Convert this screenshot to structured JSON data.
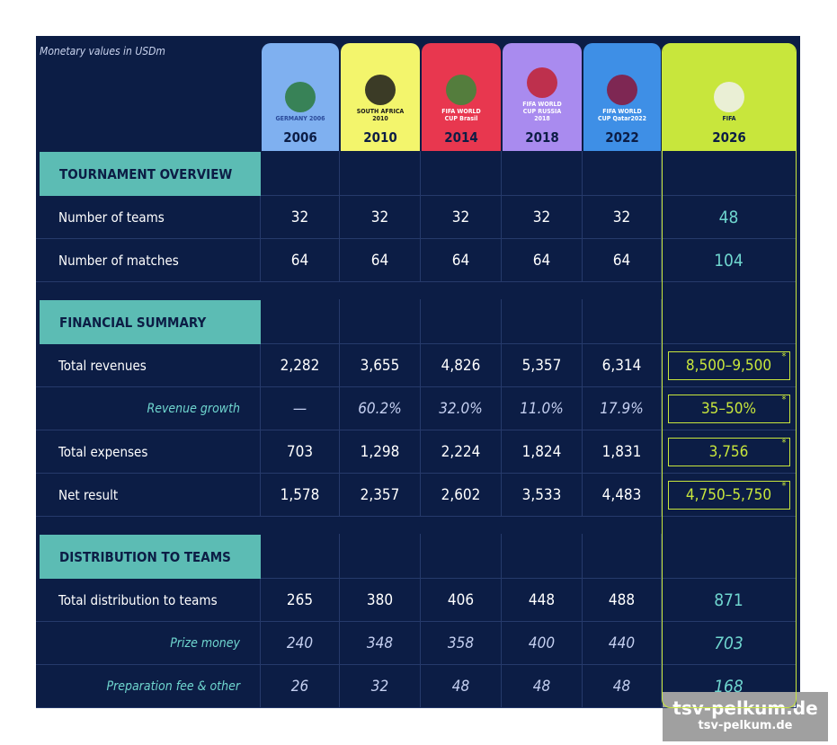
{
  "note": "Monetary values in USDm",
  "columns": [
    {
      "year": "2006",
      "logo": "GERMANY 2006"
    },
    {
      "year": "2010",
      "logo": "SOUTH AFRICA 2010"
    },
    {
      "year": "2014",
      "logo": "FIFA WORLD CUP Brasil"
    },
    {
      "year": "2018",
      "logo": "FIFA WORLD CUP RUSSIA 2018"
    },
    {
      "year": "2022",
      "logo": "FIFA WORLD CUP Qatar2022"
    },
    {
      "year": "2026",
      "logo": "FIFA"
    }
  ],
  "estimate_mark": "*",
  "sections": [
    {
      "title": "TOURNAMENT OVERVIEW",
      "rows": [
        {
          "label": "Number of teams",
          "cells": [
            "32",
            "32",
            "32",
            "32",
            "32",
            "48"
          ]
        },
        {
          "label": "Number of matches",
          "cells": [
            "64",
            "64",
            "64",
            "64",
            "64",
            "104"
          ]
        }
      ]
    },
    {
      "title": "FINANCIAL SUMMARY",
      "rows": [
        {
          "label": "Total revenues",
          "cells": [
            "2,282",
            "3,655",
            "4,826",
            "5,357",
            "6,314",
            "8,500–9,500"
          ]
        },
        {
          "label": "Revenue growth",
          "cells": [
            "—",
            "60.2%",
            "32.0%",
            "11.0%",
            "17.9%",
            "35–50%"
          ]
        },
        {
          "label": "Total expenses",
          "cells": [
            "703",
            "1,298",
            "2,224",
            "1,824",
            "1,831",
            "3,756"
          ]
        },
        {
          "label": "Net result",
          "cells": [
            "1,578",
            "2,357",
            "2,602",
            "3,533",
            "4,483",
            "4,750–5,750"
          ]
        }
      ]
    },
    {
      "title": "DISTRIBUTION TO TEAMS",
      "rows": [
        {
          "label": "Total distribution to teams",
          "cells": [
            "265",
            "380",
            "406",
            "448",
            "488",
            "871"
          ]
        },
        {
          "label": "Prize money",
          "cells": [
            "240",
            "348",
            "358",
            "400",
            "440",
            "703"
          ]
        },
        {
          "label": "Preparation fee & other",
          "cells": [
            "26",
            "32",
            "48",
            "48",
            "48",
            "168"
          ]
        }
      ]
    }
  ],
  "watermark": [
    "tsv-pelkum.de",
    "tsv-pelkum.de"
  ]
}
